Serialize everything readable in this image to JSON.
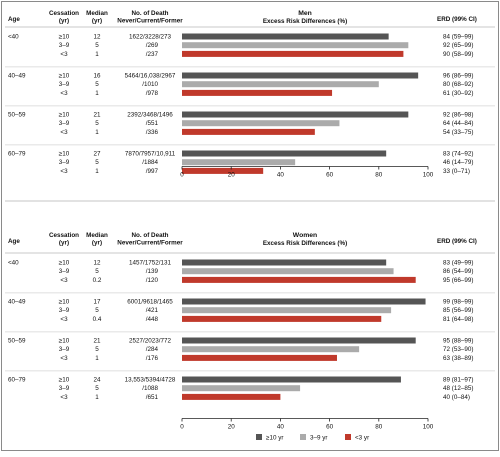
{
  "chart_data": {
    "type": "bar",
    "orientation": "horizontal",
    "columns": {
      "age": "Age",
      "cessation": "Cessation\n(yr)",
      "median": "Median\n(yr)",
      "deaths": "No. of Death\nNever/Current/Former",
      "erd": "ERD (99% CI)"
    },
    "xlim": [
      0,
      100
    ],
    "xticks": [
      "0",
      "20",
      "40",
      "60",
      "80",
      "100"
    ],
    "grid": false,
    "series": [
      {
        "name": "≥10 yr",
        "color": "#555555"
      },
      {
        "name": "3–9 yr",
        "color": "#ababab"
      },
      {
        "name": "<3 yr",
        "color": "#c0392b"
      }
    ],
    "panels": [
      {
        "title_line1": "Men",
        "title_line2": "Excess Risk Differences (%)",
        "groups": [
          {
            "age": "<40",
            "deaths": "1622/3228/273",
            "rows": [
              {
                "cessation": "≥10",
                "median": "12",
                "deaths": "",
                "value": 84,
                "erd": "84 (59–99)"
              },
              {
                "cessation": "3–9",
                "median": "5",
                "deaths": "/269",
                "value": 92,
                "erd": "92 (65–99)"
              },
              {
                "cessation": "<3",
                "median": "1",
                "deaths": "/237",
                "value": 90,
                "erd": "90 (58–99)"
              }
            ]
          },
          {
            "age": "40–49",
            "deaths": "5464/16,038/2967",
            "rows": [
              {
                "cessation": "≥10",
                "median": "16",
                "deaths": "",
                "value": 96,
                "erd": "96 (86–99)"
              },
              {
                "cessation": "3–9",
                "median": "5",
                "deaths": "/1010",
                "value": 80,
                "erd": "80 (68–92)"
              },
              {
                "cessation": "<3",
                "median": "1",
                "deaths": "/978",
                "value": 61,
                "erd": "61 (30–92)"
              }
            ]
          },
          {
            "age": "50–59",
            "deaths": "2392/3468/1496",
            "rows": [
              {
                "cessation": "≥10",
                "median": "21",
                "deaths": "",
                "value": 92,
                "erd": "92 (86–98)"
              },
              {
                "cessation": "3–9",
                "median": "5",
                "deaths": "/551",
                "value": 64,
                "erd": "64 (44–84)"
              },
              {
                "cessation": "<3",
                "median": "1",
                "deaths": "/336",
                "value": 54,
                "erd": "54 (33–75)"
              }
            ]
          },
          {
            "age": "60–79",
            "deaths": "7870/7957/10,911",
            "rows": [
              {
                "cessation": "≥10",
                "median": "27",
                "deaths": "",
                "value": 83,
                "erd": "83 (74–92)"
              },
              {
                "cessation": "3–9",
                "median": "5",
                "deaths": "/1884",
                "value": 46,
                "erd": "46 (14–79)"
              },
              {
                "cessation": "<3",
                "median": "1",
                "deaths": "/997",
                "value": 33,
                "erd": "33 (0–71)"
              }
            ]
          }
        ]
      },
      {
        "title_line1": "Women",
        "title_line2": "Excess Risk Differences (%)",
        "groups": [
          {
            "age": "<40",
            "deaths": "1457/1752/131",
            "rows": [
              {
                "cessation": "≥10",
                "median": "12",
                "deaths": "",
                "value": 83,
                "erd": "83 (49–99)"
              },
              {
                "cessation": "3–9",
                "median": "5",
                "deaths": "/139",
                "value": 86,
                "erd": "86 (54–99)"
              },
              {
                "cessation": "<3",
                "median": "0.2",
                "deaths": "/120",
                "value": 95,
                "erd": "95 (66–99)"
              }
            ]
          },
          {
            "age": "40–49",
            "deaths": "6001/9618/1465",
            "rows": [
              {
                "cessation": "≥10",
                "median": "17",
                "deaths": "",
                "value": 99,
                "erd": "99 (98–99)"
              },
              {
                "cessation": "3–9",
                "median": "5",
                "deaths": "/421",
                "value": 85,
                "erd": "85 (56–99)"
              },
              {
                "cessation": "<3",
                "median": "0.4",
                "deaths": "/448",
                "value": 81,
                "erd": "81 (64–98)"
              }
            ]
          },
          {
            "age": "50–59",
            "deaths": "2527/2023/772",
            "rows": [
              {
                "cessation": "≥10",
                "median": "21",
                "deaths": "",
                "value": 95,
                "erd": "95 (88–99)"
              },
              {
                "cessation": "3–9",
                "median": "5",
                "deaths": "/284",
                "value": 72,
                "erd": "72 (53–90)"
              },
              {
                "cessation": "<3",
                "median": "1",
                "deaths": "/176",
                "value": 63,
                "erd": "63 (38–89)"
              }
            ]
          },
          {
            "age": "60–79",
            "deaths": "13,553/5394/4728",
            "rows": [
              {
                "cessation": "≥10",
                "median": "24",
                "deaths": "",
                "value": 89,
                "erd": "89 (81–97)"
              },
              {
                "cessation": "3–9",
                "median": "5",
                "deaths": "/1088",
                "value": 48,
                "erd": "48 (12–85)"
              },
              {
                "cessation": "<3",
                "median": "1",
                "deaths": "/651",
                "value": 40,
                "erd": "40 (0–84)"
              }
            ]
          }
        ]
      }
    ]
  }
}
